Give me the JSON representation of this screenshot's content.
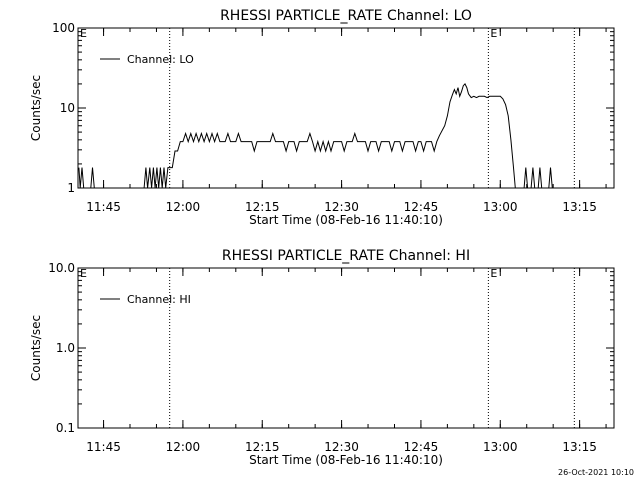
{
  "footer_timestamp": "26-Oct-2021 10:10",
  "chart_data": [
    {
      "type": "line",
      "title": "RHESSI PARTICLE_RATE Channel: LO",
      "xlabel": "Start Time (08-Feb-16 11:40:10)",
      "ylabel": "Counts/sec",
      "x_tick_labels": [
        "11:45",
        "12:00",
        "12:15",
        "12:30",
        "12:45",
        "13:00",
        "13:15"
      ],
      "x_tick_times": [
        "11:45",
        "12:00",
        "12:15",
        "12:30",
        "12:45",
        "13:00",
        "13:15"
      ],
      "xlim": [
        "11:40:10",
        "13:21:30"
      ],
      "yscale": "log",
      "ylim": [
        1,
        100
      ],
      "y_tick_labels": [
        "1",
        "10",
        "100"
      ],
      "y_tick_values": [
        1,
        10,
        100
      ],
      "eclipse_marker_label": "E",
      "eclipse_markers": [
        "11:57:30",
        "12:57:45",
        "13:14:00"
      ],
      "eclipse_markers_labeled": [
        "11:40:10",
        "12:57:45"
      ],
      "legend": {
        "entry": "Channel: LO",
        "placement": "top-left"
      },
      "series": [
        {
          "name": "Channel: LO",
          "segments": [
            [
              [
                "11:40:20",
                1.8
              ],
              [
                "11:40:35",
                1.0
              ],
              [
                "11:40:55",
                1.8
              ],
              [
                "11:41:15",
                1.0
              ],
              [
                "11:42:35",
                1.0
              ],
              [
                "11:42:55",
                1.8
              ],
              [
                "11:43:15",
                1.0
              ]
            ],
            [
              [
                "11:52:40",
                1.0
              ],
              [
                "11:53:00",
                1.8
              ],
              [
                "11:53:20",
                1.0
              ],
              [
                "11:53:45",
                1.8
              ],
              [
                "11:54:05",
                1.0
              ],
              [
                "11:54:25",
                1.8
              ],
              [
                "11:54:45",
                1.0
              ],
              [
                "11:55:05",
                1.8
              ],
              [
                "11:55:25",
                1.0
              ],
              [
                "11:55:45",
                1.8
              ],
              [
                "11:56:05",
                1.0
              ],
              [
                "11:56:25",
                1.8
              ],
              [
                "11:56:45",
                1.0
              ],
              [
                "11:57:10",
                1.8
              ],
              [
                "11:57:30",
                1.8
              ],
              [
                "11:58:00",
                1.8
              ],
              [
                "11:58:30",
                2.9
              ],
              [
                "11:59:00",
                2.9
              ],
              [
                "11:59:30",
                3.8
              ],
              [
                "12:00:00",
                3.8
              ],
              [
                "12:00:30",
                4.8
              ],
              [
                "12:01:00",
                3.8
              ],
              [
                "12:01:30",
                4.8
              ],
              [
                "12:02:00",
                3.8
              ],
              [
                "12:02:30",
                4.8
              ],
              [
                "12:03:00",
                3.8
              ],
              [
                "12:03:30",
                4.8
              ],
              [
                "12:04:00",
                3.8
              ],
              [
                "12:04:30",
                4.8
              ],
              [
                "12:05:00",
                3.8
              ],
              [
                "12:05:30",
                4.8
              ],
              [
                "12:06:00",
                3.8
              ],
              [
                "12:06:30",
                4.8
              ],
              [
                "12:07:00",
                3.8
              ],
              [
                "12:08:00",
                3.8
              ],
              [
                "12:08:30",
                4.8
              ],
              [
                "12:09:00",
                3.8
              ],
              [
                "12:10:00",
                3.8
              ],
              [
                "12:10:30",
                4.8
              ],
              [
                "12:11:00",
                3.8
              ],
              [
                "12:12:30",
                3.8
              ],
              [
                "12:13:00",
                3.8
              ],
              [
                "12:13:30",
                2.9
              ],
              [
                "12:14:00",
                3.8
              ],
              [
                "12:15:00",
                3.8
              ],
              [
                "12:16:30",
                3.8
              ],
              [
                "12:17:00",
                4.8
              ],
              [
                "12:17:30",
                3.8
              ],
              [
                "12:19:00",
                3.8
              ],
              [
                "12:19:30",
                2.9
              ],
              [
                "12:20:00",
                3.8
              ],
              [
                "12:21:00",
                3.8
              ],
              [
                "12:21:30",
                2.9
              ],
              [
                "12:22:00",
                3.8
              ],
              [
                "12:23:30",
                3.8
              ],
              [
                "12:24:00",
                4.8
              ],
              [
                "12:24:30",
                3.8
              ],
              [
                "12:25:00",
                2.9
              ],
              [
                "12:25:30",
                3.8
              ],
              [
                "12:26:00",
                2.9
              ],
              [
                "12:26:30",
                3.8
              ],
              [
                "12:27:00",
                2.9
              ],
              [
                "12:27:30",
                3.8
              ],
              [
                "12:28:00",
                2.9
              ],
              [
                "12:28:30",
                3.8
              ],
              [
                "12:30:00",
                3.8
              ],
              [
                "12:30:30",
                2.9
              ],
              [
                "12:31:00",
                3.8
              ],
              [
                "12:32:00",
                3.8
              ],
              [
                "12:32:30",
                4.8
              ],
              [
                "12:33:00",
                3.8
              ],
              [
                "12:34:30",
                3.8
              ],
              [
                "12:35:00",
                2.9
              ],
              [
                "12:35:30",
                3.8
              ],
              [
                "12:36:30",
                3.8
              ],
              [
                "12:37:00",
                2.9
              ],
              [
                "12:37:30",
                3.8
              ],
              [
                "12:39:00",
                3.8
              ],
              [
                "12:39:30",
                2.9
              ],
              [
                "12:40:00",
                3.8
              ],
              [
                "12:41:00",
                3.8
              ],
              [
                "12:41:30",
                2.9
              ],
              [
                "12:42:00",
                3.8
              ],
              [
                "12:43:30",
                3.8
              ],
              [
                "12:44:00",
                2.9
              ],
              [
                "12:44:30",
                3.8
              ],
              [
                "12:45:00",
                3.8
              ],
              [
                "12:45:30",
                2.9
              ],
              [
                "12:46:00",
                3.8
              ],
              [
                "12:47:00",
                3.8
              ],
              [
                "12:47:30",
                2.9
              ],
              [
                "12:48:00",
                3.8
              ],
              [
                "12:48:30",
                4.5
              ],
              [
                "12:49:30",
                6.0
              ],
              [
                "12:50:00",
                8.0
              ],
              [
                "12:50:30",
                12.0
              ],
              [
                "12:51:00",
                15.0
              ],
              [
                "12:51:20",
                17.0
              ],
              [
                "12:51:40",
                15.0
              ],
              [
                "12:52:00",
                18.0
              ],
              [
                "12:52:20",
                14.0
              ],
              [
                "12:52:40",
                16.0
              ],
              [
                "12:53:00",
                19.0
              ],
              [
                "12:53:20",
                20.0
              ],
              [
                "12:53:40",
                18.0
              ],
              [
                "12:54:00",
                15.0
              ],
              [
                "12:54:30",
                13.5
              ],
              [
                "12:55:00",
                14.0
              ],
              [
                "12:55:30",
                13.5
              ],
              [
                "12:56:00",
                14.0
              ],
              [
                "12:57:00",
                14.0
              ],
              [
                "12:57:30",
                13.5
              ],
              [
                "12:58:00",
                14.0
              ],
              [
                "12:59:00",
                14.0
              ],
              [
                "13:00:00",
                14.0
              ],
              [
                "13:00:30",
                13.0
              ],
              [
                "13:01:00",
                11.0
              ],
              [
                "13:01:30",
                8.0
              ],
              [
                "13:02:00",
                4.0
              ],
              [
                "13:02:30",
                1.8
              ],
              [
                "13:02:50",
                1.0
              ]
            ],
            [
              [
                "13:04:30",
                1.0
              ],
              [
                "13:04:50",
                1.8
              ],
              [
                "13:05:10",
                1.0
              ],
              [
                "13:05:50",
                1.0
              ],
              [
                "13:06:10",
                1.8
              ],
              [
                "13:06:30",
                1.0
              ],
              [
                "13:07:10",
                1.0
              ],
              [
                "13:07:30",
                1.8
              ],
              [
                "13:07:50",
                1.0
              ],
              [
                "13:09:10",
                1.0
              ],
              [
                "13:09:30",
                1.8
              ],
              [
                "13:09:50",
                1.0
              ]
            ]
          ]
        }
      ]
    },
    {
      "type": "line",
      "title": "RHESSI PARTICLE_RATE Channel: HI",
      "xlabel": "Start Time (08-Feb-16 11:40:10)",
      "ylabel": "Counts/sec",
      "x_tick_labels": [
        "11:45",
        "12:00",
        "12:15",
        "12:30",
        "12:45",
        "13:00",
        "13:15"
      ],
      "x_tick_times": [
        "11:45",
        "12:00",
        "12:15",
        "12:30",
        "12:45",
        "13:00",
        "13:15"
      ],
      "xlim": [
        "11:40:10",
        "13:21:30"
      ],
      "yscale": "log",
      "ylim": [
        0.1,
        10
      ],
      "y_tick_labels": [
        "0.1",
        "1.0",
        "10.0"
      ],
      "y_tick_values": [
        0.1,
        1,
        10
      ],
      "eclipse_marker_label": "E",
      "eclipse_markers": [
        "11:57:30",
        "12:57:45",
        "13:14:00"
      ],
      "eclipse_markers_labeled": [
        "11:40:10",
        "12:57:45"
      ],
      "legend": {
        "entry": "Channel: HI",
        "placement": "top-left"
      },
      "series": [
        {
          "name": "Channel: HI",
          "segments": []
        }
      ]
    }
  ]
}
